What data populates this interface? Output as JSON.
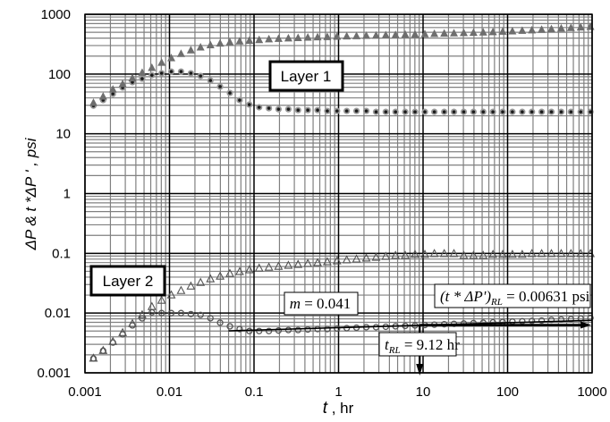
{
  "chart_data": {
    "type": "scatter",
    "title": "",
    "xlabel": "t , hr",
    "ylabel": "ΔP & t*ΔP ' , psi",
    "xscale": "log",
    "yscale": "log",
    "xlim": [
      0.001,
      1000
    ],
    "ylim": [
      0.001,
      1000
    ],
    "grid": true,
    "x_ticks": [
      "0.001",
      "0.01",
      "0.1",
      "1",
      "10",
      "100",
      "1000"
    ],
    "y_ticks": [
      "0.001",
      "0.01",
      "0.1",
      "1",
      "10",
      "100",
      "1000"
    ],
    "t": [
      0.00126,
      0.00164,
      0.00214,
      0.00279,
      0.00364,
      0.00475,
      0.00619,
      0.00807,
      0.0105,
      0.0137,
      0.0179,
      0.0233,
      0.0305,
      0.0397,
      0.0518,
      0.0676,
      0.0881,
      0.115,
      0.15,
      0.195,
      0.255,
      0.332,
      0.433,
      0.565,
      0.736,
      0.96,
      1.25,
      1.63,
      2.13,
      2.78,
      3.62,
      4.72,
      6.15,
      8.03,
      10.5,
      13.6,
      17.8,
      23.2,
      30.3,
      39.5,
      51.5,
      67.1,
      87.5,
      114,
      149,
      194,
      253,
      330,
      431,
      562,
      733,
      955
    ],
    "series": [
      {
        "name": "Layer 1 ΔP",
        "marker": "filled-circle",
        "values": [
          29.5,
          36.6,
          46.6,
          59.3,
          72.9,
          83.5,
          95.7,
          103,
          110,
          110,
          103,
          92.8,
          78,
          61.5,
          48.3,
          36.6,
          30.8,
          27.8,
          26.8,
          25.8,
          25.8,
          24.9,
          24.9,
          24.9,
          24.1,
          24.1,
          24.1,
          24.1,
          24.1,
          23.3,
          23.3,
          23.3,
          23.3,
          23.3,
          23.3,
          23.3,
          23.3,
          23.3,
          23.3,
          23.3,
          23.3,
          23.3,
          23.3,
          23.3,
          23.3,
          23.3,
          23.3,
          23.3,
          23.3,
          23.3,
          23.3,
          23.3
        ]
      },
      {
        "name": "Layer 1 t*ΔP'",
        "marker": "filled-triangle",
        "values": [
          33,
          42,
          55,
          68,
          85,
          105,
          127,
          155,
          185,
          218,
          250,
          280,
          305,
          325,
          340,
          352,
          362,
          371,
          382,
          390,
          396,
          402,
          409,
          414,
          418,
          423,
          428,
          432,
          437,
          442,
          446,
          451,
          456,
          460,
          465,
          470,
          476,
          481,
          487,
          492,
          498,
          505,
          512,
          520,
          530,
          540,
          552,
          565,
          578,
          592,
          605,
          617
        ]
      },
      {
        "name": "Layer 2 ΔP",
        "marker": "open-circle",
        "values": [
          0.00174,
          0.00234,
          0.00321,
          0.0044,
          0.00621,
          0.00817,
          0.0103,
          0.01,
          0.01,
          0.01,
          0.0096,
          0.0093,
          0.0082,
          0.0069,
          0.006,
          0.0054,
          0.005,
          0.005,
          0.005,
          0.0051,
          0.0052,
          0.0052,
          0.0053,
          0.0054,
          0.0054,
          0.0055,
          0.0056,
          0.0057,
          0.0058,
          0.0058,
          0.0059,
          0.006,
          0.0061,
          0.0062,
          0.0063,
          0.0064,
          0.0065,
          0.0066,
          0.0067,
          0.0068,
          0.0069,
          0.007,
          0.0071,
          0.0072,
          0.0073,
          0.0074,
          0.0075,
          0.0077,
          0.0078,
          0.0079,
          0.0081,
          0.0083
        ]
      },
      {
        "name": "Layer 2 t*ΔP'",
        "marker": "open-triangle",
        "values": [
          0.00174,
          0.00234,
          0.00331,
          0.00467,
          0.0066,
          0.0093,
          0.0127,
          0.0162,
          0.0199,
          0.0236,
          0.028,
          0.0322,
          0.037,
          0.041,
          0.0455,
          0.0489,
          0.0524,
          0.056,
          0.058,
          0.06,
          0.0623,
          0.0645,
          0.067,
          0.069,
          0.0716,
          0.074,
          0.0768,
          0.0795,
          0.0823,
          0.085,
          0.088,
          0.0915,
          0.0915,
          0.095,
          0.095,
          0.098,
          0.098,
          0.098,
          0.0915,
          0.0915,
          0.0915,
          0.095,
          0.095,
          0.095,
          0.095,
          0.098,
          0.098,
          0.098,
          0.098,
          0.098,
          0.098,
          0.098
        ]
      }
    ],
    "annotations": [
      {
        "text": "Layer 1",
        "type": "box"
      },
      {
        "text": "Layer 2",
        "type": "box"
      },
      {
        "text": "m = 0.041",
        "type": "box",
        "note": "slope line through Layer 2 ΔP late-time data"
      },
      {
        "text": "(t*ΔP')RL = 0.00631 psi",
        "type": "box",
        "arrow": "horizontal at y=0.00631 toward right"
      },
      {
        "text": "tRL = 9.12 hr",
        "type": "box",
        "arrow": "vertical at t=9.12 toward x-axis"
      }
    ],
    "slope_line": {
      "m": 0.041,
      "t_start": 0.05,
      "t_end": 1000,
      "y_at_1hr": 0.0057
    },
    "rl_value_psi": 0.00631,
    "t_rl_hr": 9.12
  },
  "labels": {
    "layer1": "Layer 1",
    "layer2": "Layer 2",
    "m_label": "m = 0.041",
    "m_sym": "m",
    "m_rest": " = 0.041",
    "rl_label_pre": "(t * ΔP')",
    "rl_label_sub": "RL",
    "rl_label_post": " = 0.00631 psi",
    "trl_sym": "t",
    "trl_sub": "RL",
    "trl_post": " = 9.12 hr",
    "xlabel_t": "t",
    "xlabel_rest": " , hr",
    "ylabel": "ΔP  &  t *ΔP ' , psi"
  },
  "colors": {
    "grid_major": "#000000",
    "grid_minor": "#808080",
    "marker_fill": "#6e6e6e",
    "marker_dark": "#1a1a1a",
    "open_marker": "#555555"
  }
}
